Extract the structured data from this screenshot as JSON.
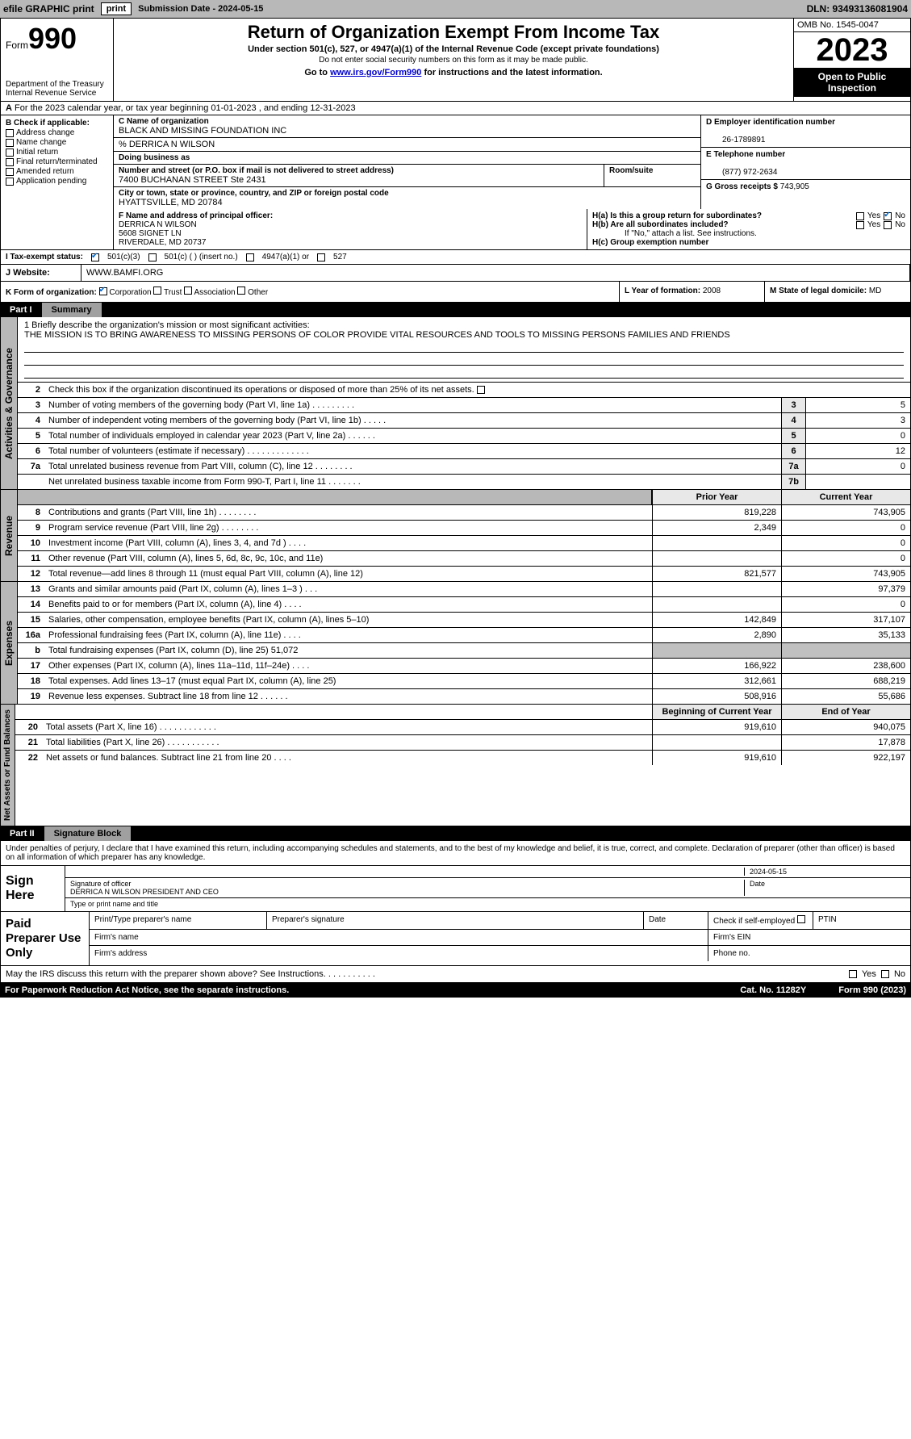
{
  "topbar": {
    "efile_label": "efile GRAPHIC print",
    "submission": "Submission Date - 2024-05-15",
    "dln": "DLN: 93493136081904"
  },
  "header": {
    "form_prefix": "Form",
    "form_number": "990",
    "title": "Return of Organization Exempt From Income Tax",
    "subtitle": "Under section 501(c), 527, or 4947(a)(1) of the Internal Revenue Code (except private foundations)",
    "note": "Do not enter social security numbers on this form as it may be made public.",
    "goto": "Go to www.irs.gov/Form990 for instructions and the latest information.",
    "goto_link": "www.irs.gov/Form990",
    "omb": "OMB No. 1545-0047",
    "year": "2023",
    "inspect": "Open to Public Inspection",
    "dept": "Department of the Treasury Internal Revenue Service"
  },
  "row_a": {
    "text": "For the 2023 calendar year, or tax year beginning 01-01-2023   , and ending 12-31-2023",
    "label": "A"
  },
  "section_b": {
    "label": "B Check if applicable:",
    "items": [
      "Address change",
      "Name change",
      "Initial return",
      "Final return/terminated",
      "Amended return",
      "Application pending"
    ]
  },
  "section_c": {
    "name_lbl": "C Name of organization",
    "name": "BLACK AND MISSING FOUNDATION INC",
    "care_of": "% DERRICA N WILSON",
    "dba_lbl": "Doing business as",
    "addr_lbl": "Number and street (or P.O. box if mail is not delivered to street address)",
    "addr": "7400 BUCHANAN STREET Ste 2431",
    "room_lbl": "Room/suite",
    "city_lbl": "City or town, state or province, country, and ZIP or foreign postal code",
    "city": "HYATTSVILLE, MD  20784"
  },
  "section_d": {
    "ein_lbl": "D Employer identification number",
    "ein": "26-1789891",
    "phone_lbl": "E Telephone number",
    "phone": "(877) 972-2634",
    "gross_lbl": "G Gross receipts $",
    "gross": "743,905"
  },
  "section_f": {
    "lbl": "F  Name and address of principal officer:",
    "name": "DERRICA N WILSON",
    "addr1": "5608 SIGNET LN",
    "addr2": "RIVERDALE, MD  20737"
  },
  "section_h": {
    "ha": "H(a)  Is this a group return for subordinates?",
    "hb": "H(b)  Are all subordinates included?",
    "hb_note": "If \"No,\" attach a list. See instructions.",
    "hc": "H(c)  Group exemption number",
    "yes": "Yes",
    "no": "No"
  },
  "section_i": {
    "lbl": "I    Tax-exempt status:",
    "o1": "501(c)(3)",
    "o2": "501(c) (  ) (insert no.)",
    "o3": "4947(a)(1) or",
    "o4": "527"
  },
  "section_j": {
    "lbl": "J   Website:",
    "val": "WWW.BAMFI.ORG"
  },
  "section_k": {
    "lbl": "K Form of organization:",
    "o1": "Corporation",
    "o2": "Trust",
    "o3": "Association",
    "o4": "Other"
  },
  "section_l": {
    "lbl": "L Year of formation:",
    "val": "2008"
  },
  "section_m": {
    "lbl": "M State of legal domicile:",
    "val": "MD"
  },
  "part1": {
    "num": "Part I",
    "title": "Summary",
    "mission_lbl": "1   Briefly describe the organization's mission or most significant activities:",
    "mission": "THE MISSION IS TO BRING AWARENESS TO MISSING PERSONS OF COLOR PROVIDE VITAL RESOURCES AND TOOLS TO MISSING PERSONS FAMILIES AND FRIENDS",
    "line2": "Check this box       if the organization discontinued its operations or disposed of more than 25% of its net assets.",
    "lines": [
      {
        "n": "3",
        "t": "Number of voting members of the governing body (Part VI, line 1a)   .    .    .    .    .    .    .    .    .",
        "box": "3",
        "v": "5"
      },
      {
        "n": "4",
        "t": "Number of independent voting members of the governing body (Part VI, line 1b)   .    .    .    .    .",
        "box": "4",
        "v": "3"
      },
      {
        "n": "5",
        "t": "Total number of individuals employed in calendar year 2023 (Part V, line 2a)   .    .    .    .    .    .",
        "box": "5",
        "v": "0"
      },
      {
        "n": "6",
        "t": "Total number of volunteers (estimate if necessary)    .    .    .    .    .    .    .    .    .    .    .    .    .",
        "box": "6",
        "v": "12"
      },
      {
        "n": "7a",
        "t": "Total unrelated business revenue from Part VIII, column (C), line 12   .    .    .    .    .    .    .    .",
        "box": "7a",
        "v": "0"
      },
      {
        "n": "",
        "t": "Net unrelated business taxable income from Form 990-T, Part I, line 11   .    .    .    .    .    .    .",
        "box": "7b",
        "v": ""
      }
    ],
    "col_hdrs": {
      "prior": "Prior Year",
      "current": "Current Year"
    },
    "revenue": [
      {
        "n": "8",
        "t": "Contributions and grants (Part VIII, line 1h)   .    .    .    .    .    .    .    .",
        "p": "819,228",
        "c": "743,905"
      },
      {
        "n": "9",
        "t": "Program service revenue (Part VIII, line 2g)   .    .    .    .    .    .    .    .",
        "p": "2,349",
        "c": "0"
      },
      {
        "n": "10",
        "t": "Investment income (Part VIII, column (A), lines 3, 4, and 7d )   .    .    .    .",
        "p": "",
        "c": "0"
      },
      {
        "n": "11",
        "t": "Other revenue (Part VIII, column (A), lines 5, 6d, 8c, 9c, 10c, and 11e)",
        "p": "",
        "c": "0"
      },
      {
        "n": "12",
        "t": "Total revenue—add lines 8 through 11 (must equal Part VIII, column (A), line 12)",
        "p": "821,577",
        "c": "743,905"
      }
    ],
    "expenses": [
      {
        "n": "13",
        "t": "Grants and similar amounts paid (Part IX, column (A), lines 1–3 )  .    .    .",
        "p": "",
        "c": "97,379"
      },
      {
        "n": "14",
        "t": "Benefits paid to or for members (Part IX, column (A), line 4)   .    .    .    .",
        "p": "",
        "c": "0"
      },
      {
        "n": "15",
        "t": "Salaries, other compensation, employee benefits (Part IX, column (A), lines 5–10)",
        "p": "142,849",
        "c": "317,107"
      },
      {
        "n": "16a",
        "t": "Professional fundraising fees (Part IX, column (A), line 11e)   .    .    .    .",
        "p": "2,890",
        "c": "35,133"
      },
      {
        "n": "b",
        "t": "Total fundraising expenses (Part IX, column (D), line 25) 51,072",
        "p": "shaded",
        "c": "shaded"
      },
      {
        "n": "17",
        "t": "Other expenses (Part IX, column (A), lines 11a–11d, 11f–24e)   .    .    .    .",
        "p": "166,922",
        "c": "238,600"
      },
      {
        "n": "18",
        "t": "Total expenses. Add lines 13–17 (must equal Part IX, column (A), line 25)",
        "p": "312,661",
        "c": "688,219"
      },
      {
        "n": "19",
        "t": "Revenue less expenses. Subtract line 18 from line 12   .    .    .    .    .    .",
        "p": "508,916",
        "c": "55,686"
      }
    ],
    "net_hdrs": {
      "begin": "Beginning of Current Year",
      "end": "End of Year"
    },
    "net": [
      {
        "n": "20",
        "t": "Total assets (Part X, line 16)   .    .    .    .    .    .    .    .    .    .    .    .",
        "p": "919,610",
        "c": "940,075"
      },
      {
        "n": "21",
        "t": "Total liabilities (Part X, line 26)   .    .    .    .    .    .    .    .    .    .    .",
        "p": "",
        "c": "17,878"
      },
      {
        "n": "22",
        "t": "Net assets or fund balances. Subtract line 21 from line 20   .    .    .    .",
        "p": "919,610",
        "c": "922,197"
      }
    ],
    "vtabs": {
      "gov": "Activities & Governance",
      "rev": "Revenue",
      "exp": "Expenses",
      "net": "Net Assets or Fund Balances"
    }
  },
  "part2": {
    "num": "Part II",
    "title": "Signature Block",
    "declaration": "Under penalties of perjury, I declare that I have examined this return, including accompanying schedules and statements, and to the best of my knowledge and belief, it is true, correct, and complete. Declaration of preparer (other than officer) is based on all information of which preparer has any knowledge.",
    "sign_here": "Sign Here",
    "sig_line1": "Signature of officer",
    "sig_date": "2024-05-15",
    "sig_name": "DERRICA N WILSON  PRESIDENT AND CEO",
    "sig_line2": "Type or print name and title",
    "date_lbl": "Date",
    "paid_lbl": "Paid Preparer Use Only",
    "prep_name": "Print/Type preparer's name",
    "prep_sig": "Preparer's signature",
    "prep_date": "Date",
    "prep_check": "Check        if self-employed",
    "ptin": "PTIN",
    "firm_name": "Firm's name",
    "firm_ein": "Firm's EIN",
    "firm_addr": "Firm's address",
    "phone": "Phone no."
  },
  "discuss": {
    "text": "May the IRS discuss this return with the preparer shown above? See Instructions.   .    .    .    .    .    .    .    .    .    .",
    "yes": "Yes",
    "no": "No"
  },
  "footer": {
    "left": "For Paperwork Reduction Act Notice, see the separate instructions.",
    "mid": "Cat. No. 11282Y",
    "right": "Form 990 (2023)"
  },
  "colors": {
    "topbar_bg": "#b8b8b8",
    "link": "#0000cc",
    "check": "#0066cc",
    "shaded": "#c0c0c0",
    "box_bg": "#e8e8e8"
  }
}
